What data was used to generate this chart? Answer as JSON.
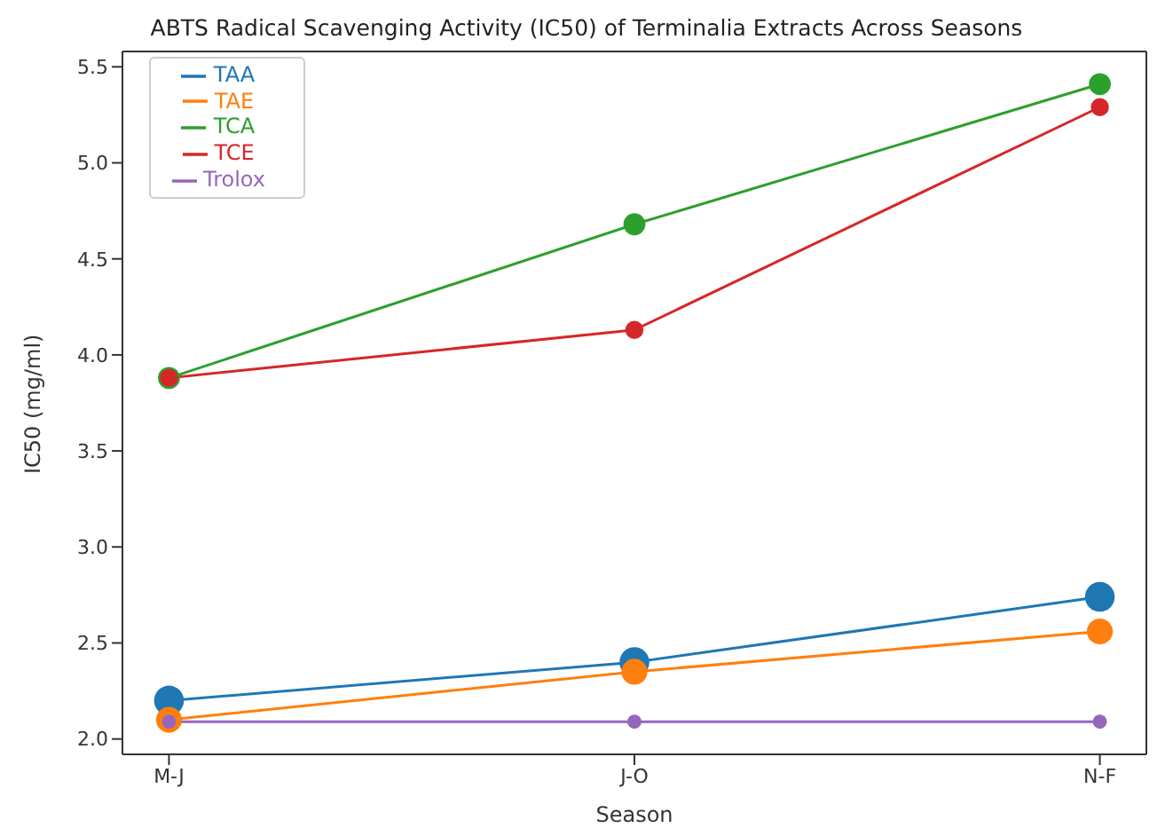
{
  "chart_data": {
    "type": "line",
    "title": "ABTS Radical Scavenging Activity (IC50) of Terminalia Extracts Across Seasons",
    "xlabel": "Season",
    "ylabel": "IC50 (mg/ml)",
    "categories": [
      "M-J",
      "J-O",
      "N-F"
    ],
    "series": [
      {
        "name": "TAA",
        "color": "#1f77b4",
        "values": [
          2.2,
          2.4,
          2.74
        ]
      },
      {
        "name": "TAE",
        "color": "#ff7f0e",
        "values": [
          2.1,
          2.35,
          2.56
        ]
      },
      {
        "name": "TCA",
        "color": "#2ca02c",
        "values": [
          3.88,
          4.68,
          5.41
        ]
      },
      {
        "name": "TCE",
        "color": "#d62728",
        "values": [
          3.88,
          4.13,
          5.29
        ]
      },
      {
        "name": "Trolox",
        "color": "#9467bd",
        "values": [
          2.09,
          2.09,
          2.09
        ]
      }
    ],
    "ylim": [
      1.92,
      5.58
    ],
    "yticks": [
      {
        "value": 2,
        "label": "2.0"
      },
      2.5,
      {
        "value": 3,
        "label": "3.0"
      },
      3.5,
      {
        "value": 4,
        "label": "4.0"
      },
      4.5,
      {
        "value": 5,
        "label": "5.0"
      },
      5.5
    ],
    "legend": "top left",
    "marker": "circle",
    "line_style": "solid"
  }
}
